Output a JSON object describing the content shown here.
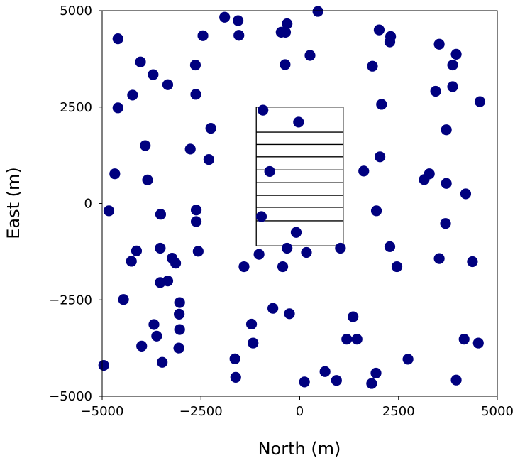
{
  "chart_data": {
    "type": "scatter",
    "title": "",
    "xlabel": "North (m)",
    "ylabel": "East (m)",
    "xlim": [
      -5000,
      5000
    ],
    "ylim": [
      -5000,
      5000
    ],
    "x_ticks": [
      -5000,
      -2500,
      0,
      2500,
      5000
    ],
    "y_ticks": [
      -5000,
      -2500,
      0,
      2500,
      5000
    ],
    "x_tick_labels": [
      "−5000",
      "−2500",
      "0",
      "2500",
      "5000"
    ],
    "y_tick_labels": [
      "−5000",
      "−2500",
      "0",
      "2500",
      "5000"
    ],
    "grid": false,
    "legend": "none",
    "marker_color": "#00007f",
    "rectangle": {
      "x_min": -1100,
      "x_max": 1100,
      "y_min": -1100,
      "y_max": 2500
    },
    "rectangle_dividers_y": [
      1850,
      1530,
      1210,
      870,
      540,
      210,
      -100,
      -450
    ],
    "points": [
      [
        -4600,
        4270
      ],
      [
        -1900,
        4830
      ],
      [
        -1560,
        4740
      ],
      [
        -320,
        4660
      ],
      [
        460,
        4980
      ],
      [
        -2450,
        4350
      ],
      [
        -1540,
        4360
      ],
      [
        -470,
        4440
      ],
      [
        -360,
        4440
      ],
      [
        2010,
        4500
      ],
      [
        2300,
        4330
      ],
      [
        2280,
        4190
      ],
      [
        3530,
        4130
      ],
      [
        3960,
        3870
      ],
      [
        -4030,
        3670
      ],
      [
        -3710,
        3340
      ],
      [
        -2640,
        3590
      ],
      [
        -370,
        3600
      ],
      [
        260,
        3840
      ],
      [
        1840,
        3560
      ],
      [
        3870,
        3590
      ],
      [
        -3340,
        3080
      ],
      [
        -4230,
        2810
      ],
      [
        -2630,
        2830
      ],
      [
        3440,
        2910
      ],
      [
        3870,
        3030
      ],
      [
        -4600,
        2480
      ],
      [
        2070,
        2570
      ],
      [
        4560,
        2640
      ],
      [
        -930,
        2420
      ],
      [
        -30,
        2110
      ],
      [
        -2250,
        1950
      ],
      [
        3710,
        1910
      ],
      [
        -3910,
        1500
      ],
      [
        -2770,
        1410
      ],
      [
        -2300,
        1140
      ],
      [
        2030,
        1210
      ],
      [
        -4680,
        770
      ],
      [
        -3850,
        610
      ],
      [
        -760,
        830
      ],
      [
        1620,
        840
      ],
      [
        3280,
        770
      ],
      [
        3150,
        620
      ],
      [
        3710,
        520
      ],
      [
        4200,
        250
      ],
      [
        -4830,
        -190
      ],
      [
        -2620,
        -170
      ],
      [
        -3520,
        -280
      ],
      [
        -970,
        -340
      ],
      [
        1940,
        -190
      ],
      [
        -2620,
        -470
      ],
      [
        -90,
        -750
      ],
      [
        3690,
        -520
      ],
      [
        -4130,
        -1230
      ],
      [
        -3530,
        -1160
      ],
      [
        -2570,
        -1240
      ],
      [
        -320,
        -1160
      ],
      [
        170,
        -1270
      ],
      [
        -1030,
        -1320
      ],
      [
        1030,
        -1160
      ],
      [
        2280,
        -1120
      ],
      [
        -3230,
        -1420
      ],
      [
        -4260,
        -1500
      ],
      [
        -3140,
        -1550
      ],
      [
        -1410,
        -1640
      ],
      [
        -430,
        -1640
      ],
      [
        2460,
        -1640
      ],
      [
        3530,
        -1430
      ],
      [
        4370,
        -1510
      ],
      [
        -3530,
        -2050
      ],
      [
        -3340,
        -2010
      ],
      [
        -4460,
        -2490
      ],
      [
        -3040,
        -2570
      ],
      [
        -680,
        -2720
      ],
      [
        -260,
        -2860
      ],
      [
        1350,
        -2940
      ],
      [
        -3050,
        -2870
      ],
      [
        -3690,
        -3140
      ],
      [
        -3040,
        -3270
      ],
      [
        -1220,
        -3130
      ],
      [
        -3620,
        -3440
      ],
      [
        1190,
        -3520
      ],
      [
        1450,
        -3520
      ],
      [
        4160,
        -3520
      ],
      [
        4520,
        -3620
      ],
      [
        -4000,
        -3700
      ],
      [
        -3060,
        -3750
      ],
      [
        -1180,
        -3620
      ],
      [
        -1640,
        -4030
      ],
      [
        2740,
        -4040
      ],
      [
        -4960,
        -4200
      ],
      [
        -3480,
        -4120
      ],
      [
        640,
        -4360
      ],
      [
        1930,
        -4400
      ],
      [
        -1620,
        -4510
      ],
      [
        120,
        -4630
      ],
      [
        930,
        -4590
      ],
      [
        1820,
        -4670
      ],
      [
        3960,
        -4580
      ]
    ]
  }
}
